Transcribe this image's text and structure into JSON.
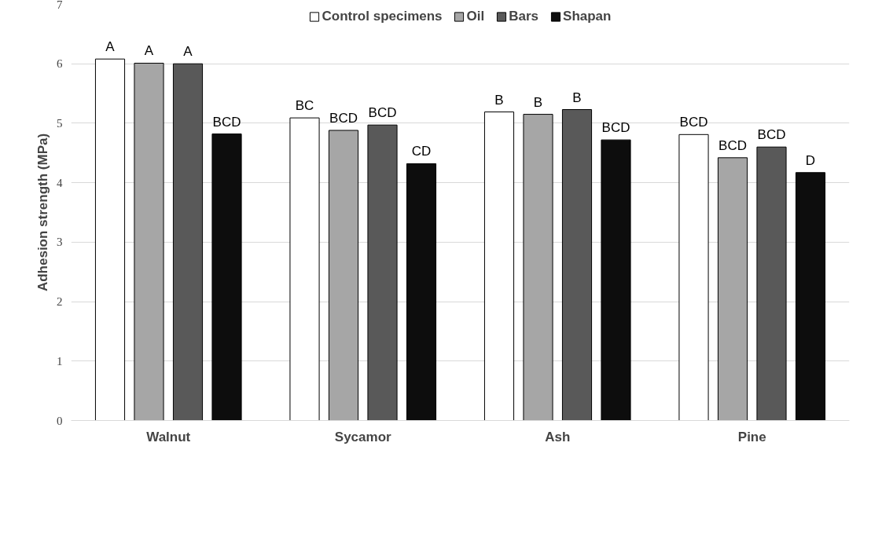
{
  "chart_data": {
    "type": "bar",
    "ylabel": "Adhesion strength (MPa)",
    "categories": [
      "Walnut",
      "Sycamor",
      "Ash",
      "Pine"
    ],
    "series": [
      {
        "name": "Control specimens",
        "color": "#ffffff",
        "values": [
          6.08,
          5.09,
          5.19,
          4.81
        ],
        "value_labels": [
          "A",
          "BC",
          "B",
          "BCD"
        ]
      },
      {
        "name": "Oil",
        "color": "#a6a6a6",
        "values": [
          6.01,
          4.88,
          5.15,
          4.42
        ],
        "value_labels": [
          "A",
          "BCD",
          "B",
          "BCD"
        ]
      },
      {
        "name": "Bars",
        "color": "#595959",
        "values": [
          6.0,
          4.97,
          5.23,
          4.6
        ],
        "value_labels": [
          "A",
          "BCD",
          "B",
          "BCD"
        ]
      },
      {
        "name": "Shapan",
        "color": "#0d0d0d",
        "values": [
          4.82,
          4.32,
          4.72,
          4.17
        ],
        "value_labels": [
          "BCD",
          "CD",
          "BCD",
          "D"
        ]
      }
    ],
    "ylim": [
      0,
      7
    ],
    "yticks": [
      0,
      1,
      2,
      3,
      4,
      5,
      6,
      7
    ],
    "grid": "y",
    "legend": "top"
  }
}
